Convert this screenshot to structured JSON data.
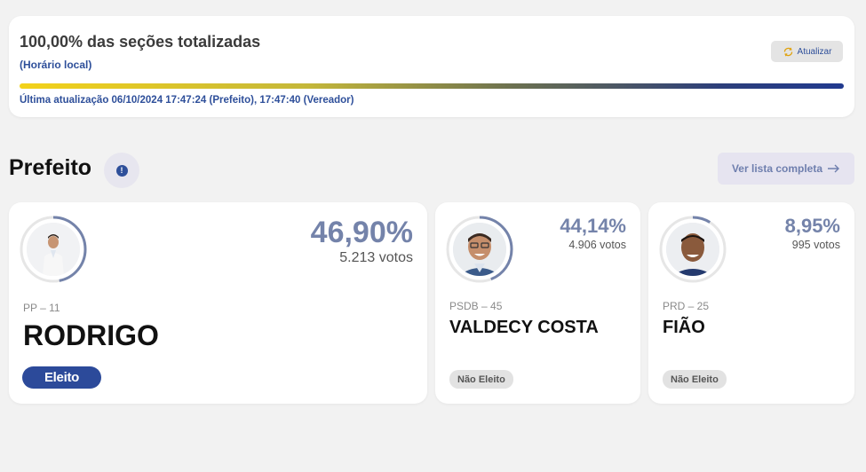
{
  "status": {
    "title": "100,00% das seções totalizadas",
    "subtitle": "(Horário local)",
    "refresh_label": "Atualizar",
    "last_update": "Última atualização 06/10/2024 17:47:24 (Prefeito), 17:47:40 (Vereador)",
    "progress_percent": 100
  },
  "section": {
    "title": "Prefeito",
    "full_list_label": "Ver lista completa"
  },
  "candidates": [
    {
      "party": "PP – 11",
      "name": "RODRIGO",
      "percent": "46,90%",
      "votes": "5.213 votos",
      "status": "Eleito",
      "share": 0.469
    },
    {
      "party": "PSDB – 45",
      "name": "VALDECY COSTA",
      "percent": "44,14%",
      "votes": "4.906 votos",
      "status": "Não Eleito",
      "share": 0.4414
    },
    {
      "party": "PRD – 25",
      "name": "FIÃO",
      "percent": "8,95%",
      "votes": "995 votos",
      "status": "Não Eleito",
      "share": 0.0895
    }
  ],
  "colors": {
    "accent": "#2e4f9a",
    "ring": "#7483aa",
    "elected_badge": "#2c4a9a"
  }
}
